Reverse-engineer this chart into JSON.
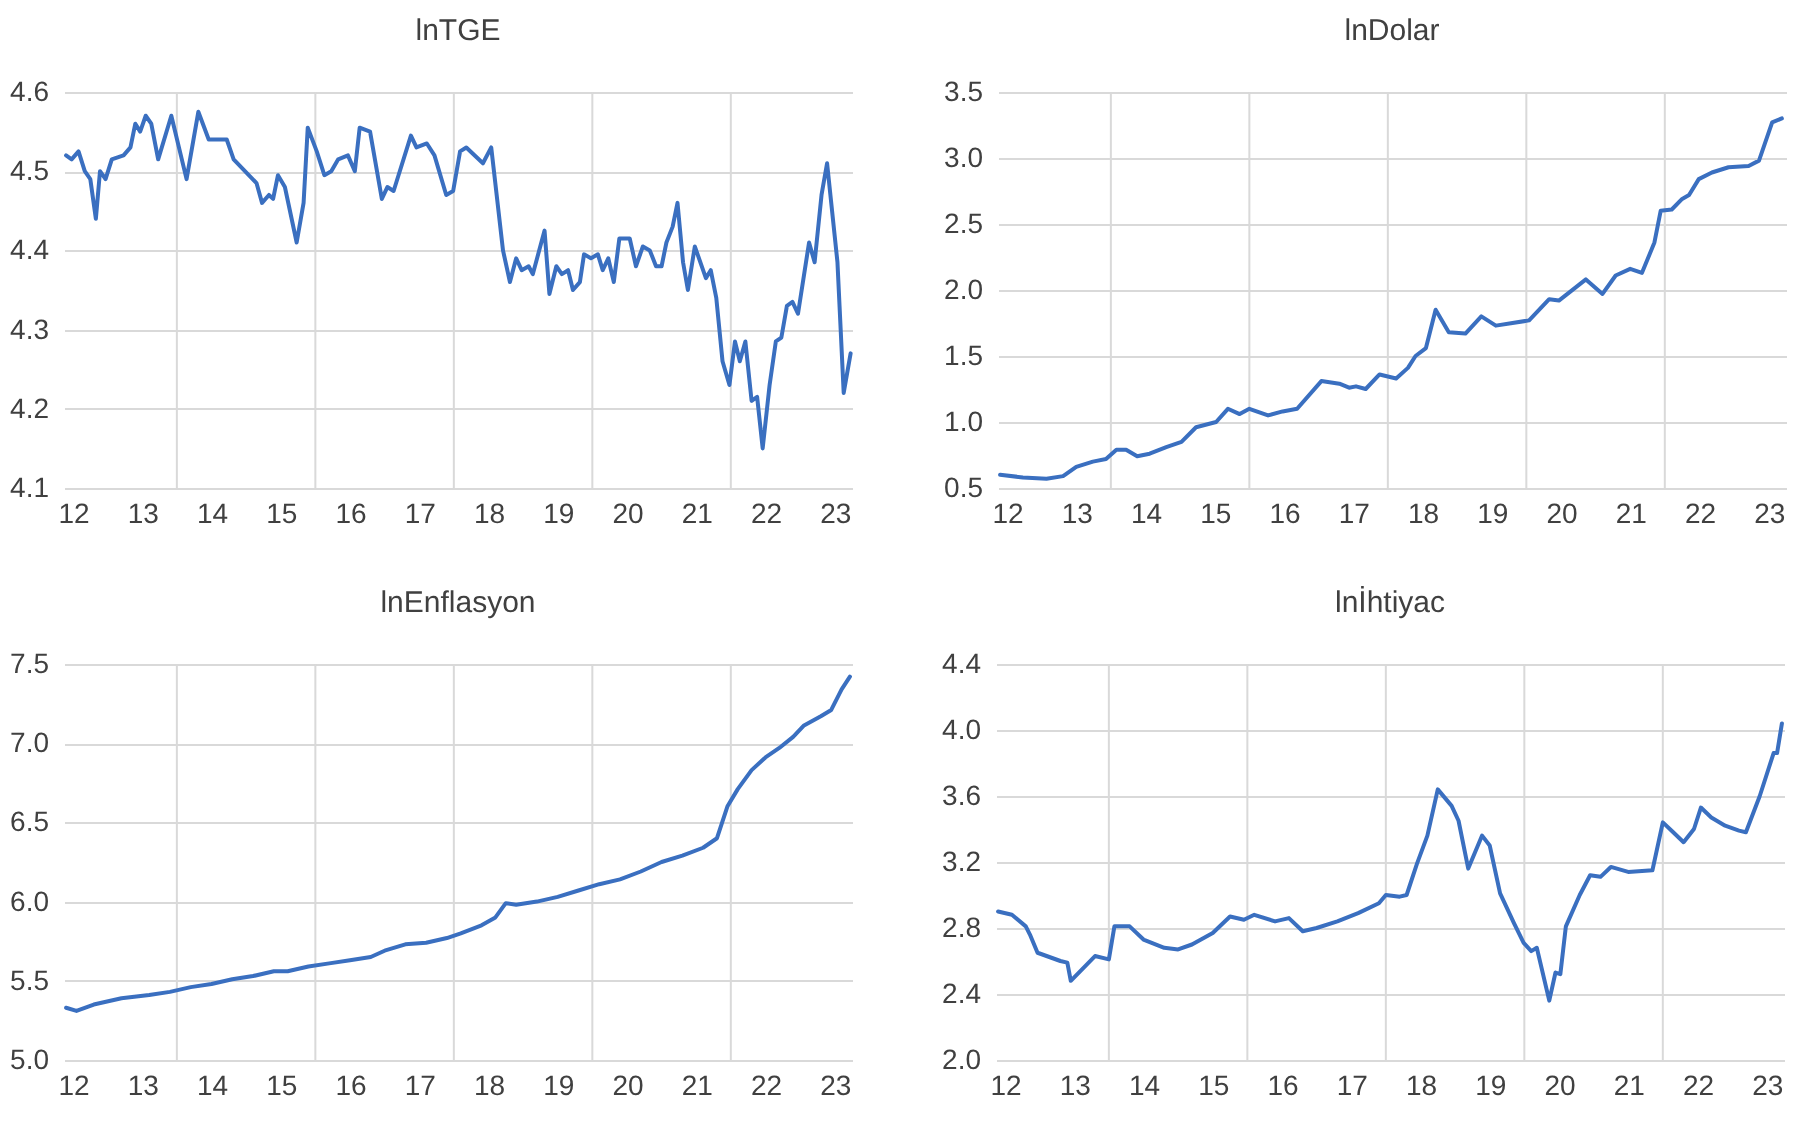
{
  "chart_data": [
    {
      "type": "line",
      "title": "lnTGE",
      "xlim": [
        12.37,
        23.75
      ],
      "ylim": [
        4.1,
        4.6
      ],
      "yticks": [
        4.1,
        4.2,
        4.3,
        4.4,
        4.5,
        4.6
      ],
      "grid": "y",
      "xticks": [
        {
          "value": 12.5,
          "label": "12"
        },
        {
          "value": 13.5,
          "label": "13"
        },
        {
          "value": 14.5,
          "label": "14"
        },
        {
          "value": 15.5,
          "label": "15"
        },
        {
          "value": 16.5,
          "label": "16"
        },
        {
          "value": 17.5,
          "label": "17"
        },
        {
          "value": 18.5,
          "label": "18"
        },
        {
          "value": 19.5,
          "label": "19"
        },
        {
          "value": 20.5,
          "label": "20"
        },
        {
          "value": 21.5,
          "label": "21"
        },
        {
          "value": 22.5,
          "label": "22"
        },
        {
          "value": 23.5,
          "label": "23"
        }
      ],
      "ref_lines": [
        {
          "axis": "x",
          "value": 14,
          "color": "#d9d9d9"
        },
        {
          "axis": "x",
          "value": 16,
          "color": "#d9d9d9"
        },
        {
          "axis": "x",
          "value": 18,
          "color": "#d9d9d9"
        },
        {
          "axis": "x",
          "value": 20,
          "color": "#d9d9d9"
        },
        {
          "axis": "x",
          "value": 22,
          "color": "#d9d9d9"
        }
      ],
      "x": [
        12.4,
        12.48,
        12.58,
        12.67,
        12.75,
        12.83,
        12.89,
        12.97,
        13.06,
        13.23,
        13.33,
        13.4,
        13.47,
        13.55,
        13.63,
        13.73,
        13.92,
        14.14,
        14.31,
        14.46,
        14.63,
        14.72,
        14.82,
        15.15,
        15.23,
        15.33,
        15.39,
        15.46,
        15.56,
        15.73,
        15.83,
        15.89,
        16.02,
        16.13,
        16.23,
        16.33,
        16.47,
        16.57,
        16.64,
        16.79,
        16.96,
        17.04,
        17.13,
        17.38,
        17.46,
        17.61,
        17.72,
        17.89,
        17.99,
        18.09,
        18.18,
        18.42,
        18.54,
        18.71,
        18.81,
        18.9,
        18.98,
        19.08,
        19.14,
        19.31,
        19.38,
        19.48,
        19.56,
        19.65,
        19.72,
        19.82,
        19.88,
        19.98,
        20.08,
        20.15,
        20.23,
        20.31,
        20.39,
        20.54,
        20.63,
        20.73,
        20.83,
        20.92,
        21.0,
        21.07,
        21.16,
        21.23,
        21.31,
        21.38,
        21.48,
        21.64,
        21.71,
        21.79,
        21.88,
        21.98,
        22.06,
        22.13,
        22.21,
        22.3,
        22.38,
        22.46,
        22.56,
        22.65,
        22.73,
        22.81,
        22.89,
        22.97,
        23.13,
        23.21,
        23.31,
        23.39,
        23.54,
        23.63,
        23.73
      ],
      "series": [
        {
          "color": "#3a6fc0",
          "values": [
            4.52,
            4.515,
            4.525,
            4.5,
            4.49,
            4.44,
            4.5,
            4.49,
            4.515,
            4.52,
            4.53,
            4.56,
            4.55,
            4.57,
            4.56,
            4.515,
            4.57,
            4.49,
            4.575,
            4.54,
            4.54,
            4.54,
            4.515,
            4.485,
            4.46,
            4.47,
            4.465,
            4.495,
            4.48,
            4.41,
            4.46,
            4.555,
            4.525,
            4.495,
            4.5,
            4.515,
            4.52,
            4.5,
            4.555,
            4.55,
            4.465,
            4.48,
            4.475,
            4.545,
            4.53,
            4.535,
            4.52,
            4.47,
            4.475,
            4.525,
            4.53,
            4.51,
            4.53,
            4.4,
            4.36,
            4.39,
            4.375,
            4.38,
            4.37,
            4.425,
            4.345,
            4.38,
            4.37,
            4.375,
            4.35,
            4.36,
            4.395,
            4.39,
            4.395,
            4.375,
            4.39,
            4.36,
            4.415,
            4.415,
            4.38,
            4.405,
            4.4,
            4.38,
            4.38,
            4.41,
            4.43,
            4.46,
            4.385,
            4.35,
            4.405,
            4.365,
            4.375,
            4.34,
            4.26,
            4.23,
            4.285,
            4.26,
            4.285,
            4.21,
            4.215,
            4.15,
            4.23,
            4.285,
            4.29,
            4.33,
            4.335,
            4.32,
            4.41,
            4.385,
            4.47,
            4.51,
            4.385,
            4.22,
            4.27
          ]
        }
      ]
    },
    {
      "type": "line",
      "title": "lnDolar",
      "xlim": [
        12.37,
        23.75
      ],
      "ylim": [
        0.5,
        3.5
      ],
      "yticks": [
        0.5,
        {
          "value": 1,
          "label": "1.0"
        },
        1.5,
        {
          "value": 2,
          "label": "2.0"
        },
        2.5,
        {
          "value": 3,
          "label": "3.0"
        },
        3.5
      ],
      "grid": "y",
      "xticks": [
        {
          "value": 12.5,
          "label": "12"
        },
        {
          "value": 13.5,
          "label": "13"
        },
        {
          "value": 14.5,
          "label": "14"
        },
        {
          "value": 15.5,
          "label": "15"
        },
        {
          "value": 16.5,
          "label": "16"
        },
        {
          "value": 17.5,
          "label": "17"
        },
        {
          "value": 18.5,
          "label": "18"
        },
        {
          "value": 19.5,
          "label": "19"
        },
        {
          "value": 20.5,
          "label": "20"
        },
        {
          "value": 21.5,
          "label": "21"
        },
        {
          "value": 22.5,
          "label": "22"
        },
        {
          "value": 23.5,
          "label": "23"
        }
      ],
      "ref_lines": [
        {
          "axis": "x",
          "value": 14,
          "color": "#d9d9d9"
        },
        {
          "axis": "x",
          "value": 16,
          "color": "#d9d9d9"
        },
        {
          "axis": "x",
          "value": 18,
          "color": "#d9d9d9"
        },
        {
          "axis": "x",
          "value": 20,
          "color": "#d9d9d9"
        },
        {
          "axis": "x",
          "value": 22,
          "color": "#d9d9d9"
        }
      ],
      "x": [
        12.4,
        12.73,
        13.07,
        13.31,
        13.5,
        13.74,
        13.93,
        14.08,
        14.22,
        14.38,
        14.56,
        14.8,
        15.02,
        15.23,
        15.52,
        15.69,
        15.86,
        16.0,
        16.27,
        16.48,
        16.69,
        17.04,
        17.3,
        17.44,
        17.54,
        17.68,
        17.88,
        18.12,
        18.29,
        18.4,
        18.55,
        18.69,
        18.88,
        19.12,
        19.35,
        19.56,
        19.8,
        20.04,
        20.33,
        20.47,
        20.86,
        21.1,
        21.29,
        21.5,
        21.67,
        21.85,
        21.94,
        22.1,
        22.25,
        22.35,
        22.49,
        22.68,
        22.92,
        23.21,
        23.36,
        23.55,
        23.69
      ],
      "series": [
        {
          "color": "#3a6fc0",
          "values": [
            0.6,
            0.58,
            0.57,
            0.59,
            0.66,
            0.7,
            0.72,
            0.79,
            0.79,
            0.74,
            0.76,
            0.81,
            0.85,
            0.96,
            1.0,
            1.1,
            1.06,
            1.1,
            1.05,
            1.08,
            1.1,
            1.31,
            1.29,
            1.26,
            1.27,
            1.25,
            1.36,
            1.33,
            1.41,
            1.5,
            1.56,
            1.85,
            1.68,
            1.67,
            1.8,
            1.73,
            1.75,
            1.77,
            1.93,
            1.92,
            2.08,
            1.97,
            2.11,
            2.16,
            2.13,
            2.36,
            2.6,
            2.61,
            2.69,
            2.72,
            2.84,
            2.89,
            2.93,
            2.94,
            2.98,
            3.27,
            3.3
          ]
        }
      ]
    },
    {
      "type": "line",
      "title": "lnEnflasyon",
      "xlim": [
        12.37,
        23.75
      ],
      "ylim": [
        5,
        7.5
      ],
      "yticks": [
        {
          "value": 5,
          "label": "5.0"
        },
        5.5,
        {
          "value": 6,
          "label": "6.0"
        },
        6.5,
        {
          "value": 7,
          "label": "7.0"
        },
        7.5
      ],
      "grid": "y",
      "xticks": [
        {
          "value": 12.5,
          "label": "12"
        },
        {
          "value": 13.5,
          "label": "13"
        },
        {
          "value": 14.5,
          "label": "14"
        },
        {
          "value": 15.5,
          "label": "15"
        },
        {
          "value": 16.5,
          "label": "16"
        },
        {
          "value": 17.5,
          "label": "17"
        },
        {
          "value": 18.5,
          "label": "18"
        },
        {
          "value": 19.5,
          "label": "19"
        },
        {
          "value": 20.5,
          "label": "20"
        },
        {
          "value": 21.5,
          "label": "21"
        },
        {
          "value": 22.5,
          "label": "22"
        },
        {
          "value": 23.5,
          "label": "23"
        }
      ],
      "ref_lines": [
        {
          "axis": "x",
          "value": 14,
          "color": "#d9d9d9"
        },
        {
          "axis": "x",
          "value": 16,
          "color": "#d9d9d9"
        },
        {
          "axis": "x",
          "value": 18,
          "color": "#d9d9d9"
        },
        {
          "axis": "x",
          "value": 20,
          "color": "#d9d9d9"
        },
        {
          "axis": "x",
          "value": 22,
          "color": "#d9d9d9"
        }
      ],
      "x": [
        12.4,
        12.55,
        12.8,
        13.2,
        13.6,
        13.9,
        14.2,
        14.5,
        14.8,
        15.1,
        15.4,
        15.6,
        15.9,
        16.2,
        16.5,
        16.8,
        17.0,
        17.3,
        17.6,
        17.9,
        18.1,
        18.4,
        18.6,
        18.75,
        18.9,
        19.2,
        19.5,
        19.8,
        20.1,
        20.4,
        20.7,
        21.0,
        21.3,
        21.6,
        21.8,
        21.95,
        22.1,
        22.3,
        22.5,
        22.7,
        22.9,
        23.05,
        23.3,
        23.45,
        23.6,
        23.72
      ],
      "series": [
        {
          "color": "#3a6fc0",
          "values": [
            5.33,
            5.31,
            5.35,
            5.39,
            5.41,
            5.43,
            5.46,
            5.48,
            5.51,
            5.53,
            5.56,
            5.56,
            5.59,
            5.61,
            5.63,
            5.65,
            5.69,
            5.73,
            5.74,
            5.77,
            5.8,
            5.85,
            5.9,
            5.99,
            5.98,
            6.0,
            6.03,
            6.07,
            6.11,
            6.14,
            6.19,
            6.25,
            6.29,
            6.34,
            6.4,
            6.6,
            6.71,
            6.83,
            6.91,
            6.97,
            7.04,
            7.11,
            7.17,
            7.21,
            7.34,
            7.42
          ]
        }
      ]
    },
    {
      "type": "line",
      "title": "lnİhtiyac",
      "xlim": [
        12.37,
        23.75
      ],
      "ylim": [
        2,
        4.4
      ],
      "yticks": [
        {
          "value": 2,
          "label": "2.0"
        },
        2.4,
        2.8,
        3.2,
        3.6,
        {
          "value": 4,
          "label": "4.0"
        },
        4.4
      ],
      "grid": "y",
      "xticks": [
        {
          "value": 12.5,
          "label": "12"
        },
        {
          "value": 13.5,
          "label": "13"
        },
        {
          "value": 14.5,
          "label": "14"
        },
        {
          "value": 15.5,
          "label": "15"
        },
        {
          "value": 16.5,
          "label": "16"
        },
        {
          "value": 17.5,
          "label": "17"
        },
        {
          "value": 18.5,
          "label": "18"
        },
        {
          "value": 19.5,
          "label": "19"
        },
        {
          "value": 20.5,
          "label": "20"
        },
        {
          "value": 21.5,
          "label": "21"
        },
        {
          "value": 22.5,
          "label": "22"
        },
        {
          "value": 23.5,
          "label": "23"
        }
      ],
      "ref_lines": [
        {
          "axis": "x",
          "value": 14,
          "color": "#d9d9d9"
        },
        {
          "axis": "x",
          "value": 16,
          "color": "#d9d9d9"
        },
        {
          "axis": "x",
          "value": 18,
          "color": "#d9d9d9"
        },
        {
          "axis": "x",
          "value": 20,
          "color": "#d9d9d9"
        },
        {
          "axis": "x",
          "value": 22,
          "color": "#d9d9d9"
        }
      ],
      "x": [
        12.4,
        12.6,
        12.8,
        12.86,
        12.97,
        13.3,
        13.4,
        13.45,
        13.8,
        14.0,
        14.08,
        14.3,
        14.5,
        14.8,
        15.0,
        15.2,
        15.5,
        15.75,
        15.95,
        16.1,
        16.4,
        16.6,
        16.8,
        17.0,
        17.3,
        17.6,
        17.9,
        18.0,
        18.2,
        18.3,
        18.45,
        18.6,
        18.75,
        18.95,
        19.05,
        19.19,
        19.39,
        19.5,
        19.65,
        19.85,
        19.99,
        20.1,
        20.18,
        20.36,
        20.45,
        20.52,
        20.6,
        20.8,
        20.95,
        21.1,
        21.25,
        21.5,
        21.85,
        22.0,
        22.15,
        22.3,
        22.45,
        22.55,
        22.7,
        22.9,
        23.1,
        23.2,
        23.4,
        23.6,
        23.65,
        23.72
      ],
      "series": [
        {
          "color": "#3a6fc0",
          "values": [
            2.9,
            2.88,
            2.81,
            2.76,
            2.65,
            2.6,
            2.59,
            2.48,
            2.63,
            2.61,
            2.81,
            2.81,
            2.73,
            2.68,
            2.67,
            2.7,
            2.77,
            2.87,
            2.85,
            2.88,
            2.84,
            2.86,
            2.78,
            2.8,
            2.84,
            2.89,
            2.95,
            3.0,
            2.99,
            3.0,
            3.19,
            3.36,
            3.64,
            3.54,
            3.45,
            3.16,
            3.36,
            3.3,
            3.01,
            2.83,
            2.71,
            2.66,
            2.68,
            2.36,
            2.53,
            2.52,
            2.81,
            3.0,
            3.12,
            3.11,
            3.17,
            3.14,
            3.15,
            3.44,
            3.38,
            3.32,
            3.4,
            3.53,
            3.47,
            3.42,
            3.39,
            3.38,
            3.6,
            3.86,
            3.86,
            4.04
          ]
        }
      ]
    }
  ]
}
